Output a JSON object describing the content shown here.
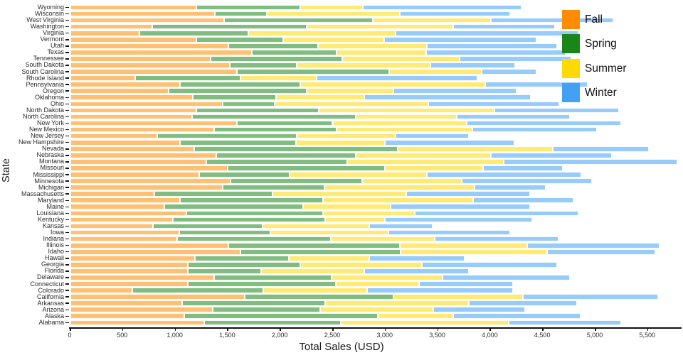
{
  "chart_data": {
    "type": "bar",
    "orientation": "horizontal",
    "stacked": true,
    "xlabel": "Total Sales (USD)",
    "ylabel": "State",
    "grid": false,
    "legend_position": "top-right",
    "x_ticks": [
      0,
      500,
      1000,
      1500,
      2000,
      2500,
      3000,
      3500,
      4000,
      4500,
      5000,
      5500
    ],
    "x_tick_labels": [
      "0",
      "500",
      "1,000",
      "1,500",
      "2,000",
      "2,500",
      "3,000",
      "3,500",
      "4,000",
      "4,500",
      "5,000",
      "5,500"
    ],
    "xlim": [
      0,
      5840
    ],
    "legend": [
      "Fall",
      "Spring",
      "Summer",
      "Winter"
    ],
    "colors": {
      "Fall": "#FF8C00",
      "Spring": "#1A8617",
      "Summer": "#FFD900",
      "Winter": "#42A1F5"
    },
    "bar_opacity": 0.55,
    "series_order": [
      "Fall",
      "Spring",
      "Summer",
      "Winter"
    ],
    "rows_top_to_bottom": [
      {
        "state": "Wyoming",
        "values": [
          1200,
          990,
          600,
          1510
        ]
      },
      {
        "state": "Wisconsin",
        "values": [
          1380,
          490,
          1270,
          1050
        ]
      },
      {
        "state": "West Virginia",
        "values": [
          1470,
          1410,
          1130,
          1160
        ]
      },
      {
        "state": "Washington",
        "values": [
          780,
          1470,
          1400,
          970
        ]
      },
      {
        "state": "Virginia",
        "values": [
          660,
          1040,
          1400,
          1740
        ]
      },
      {
        "state": "Vermont",
        "values": [
          1200,
          830,
          960,
          1450
        ]
      },
      {
        "state": "Utah",
        "values": [
          1510,
          850,
          1040,
          1240
        ]
      },
      {
        "state": "Texas",
        "values": [
          1730,
          810,
          850,
          1330
        ]
      },
      {
        "state": "Tennessee",
        "values": [
          1340,
          1250,
          1120,
          1060
        ]
      },
      {
        "state": "South Dakota",
        "values": [
          1520,
          640,
          1270,
          810
        ]
      },
      {
        "state": "South Carolina",
        "values": [
          1590,
          1450,
          880,
          520
        ]
      },
      {
        "state": "Rhode Island",
        "values": [
          620,
          1000,
          730,
          1530
        ]
      },
      {
        "state": "Pennsylvania",
        "values": [
          1050,
          1140,
          1760,
          980
        ]
      },
      {
        "state": "Oregon",
        "values": [
          940,
          1310,
          830,
          1170
        ]
      },
      {
        "state": "Oklahoma",
        "values": [
          1170,
          790,
          840,
          1590
        ]
      },
      {
        "state": "Ohio",
        "values": [
          1450,
          500,
          1460,
          1250
        ]
      },
      {
        "state": "North Dakota",
        "values": [
          1200,
          1170,
          1670,
          1190
        ]
      },
      {
        "state": "North Carolina",
        "values": [
          1160,
          1560,
          960,
          1080
        ]
      },
      {
        "state": "New York",
        "values": [
          1590,
          910,
          1280,
          1470
        ]
      },
      {
        "state": "New Mexico",
        "values": [
          1370,
          1170,
          1290,
          1190
        ]
      },
      {
        "state": "New Jersey",
        "values": [
          830,
          1330,
          940,
          700
        ]
      },
      {
        "state": "New Hampshire",
        "values": [
          1050,
          1100,
          850,
          1230
        ]
      },
      {
        "state": "Nevada",
        "values": [
          1180,
          1940,
          1480,
          910
        ]
      },
      {
        "state": "Nebraska",
        "values": [
          1390,
          1330,
          1290,
          1150
        ]
      },
      {
        "state": "Montana",
        "values": [
          1300,
          1340,
          1490,
          1650
        ]
      },
      {
        "state": "Missouri",
        "values": [
          1500,
          1500,
          930,
          760
        ]
      },
      {
        "state": "Mississippi",
        "values": [
          1230,
          860,
          1310,
          1470
        ]
      },
      {
        "state": "Minnesota",
        "values": [
          1530,
          1250,
          950,
          1240
        ]
      },
      {
        "state": "Michigan",
        "values": [
          1450,
          970,
          1430,
          680
        ]
      },
      {
        "state": "Massachusetts",
        "values": [
          800,
          1130,
          1270,
          1180
        ]
      },
      {
        "state": "Maryland",
        "values": [
          1050,
          1360,
          1430,
          950
        ]
      },
      {
        "state": "Maine",
        "values": [
          900,
          1320,
          830,
          1330
        ]
      },
      {
        "state": "Louisiana",
        "values": [
          1110,
          1300,
          870,
          1560
        ]
      },
      {
        "state": "Kentucky",
        "values": [
          980,
          1450,
          570,
          1400
        ]
      },
      {
        "state": "Kansas",
        "values": [
          790,
          1040,
          1020,
          600
        ]
      },
      {
        "state": "Iowa",
        "values": [
          1040,
          870,
          1120,
          1160
        ]
      },
      {
        "state": "Indiana",
        "values": [
          1020,
          1460,
          990,
          1180
        ]
      },
      {
        "state": "Illinois",
        "values": [
          1510,
          1630,
          1210,
          1260
        ]
      },
      {
        "state": "Idaho",
        "values": [
          1620,
          1530,
          1390,
          1030
        ]
      },
      {
        "state": "Hawaii",
        "values": [
          1190,
          890,
          770,
          910
        ]
      },
      {
        "state": "Georgia",
        "values": [
          1120,
          1070,
          1160,
          1290
        ]
      },
      {
        "state": "Florida",
        "values": [
          1120,
          700,
          980,
          1000
        ]
      },
      {
        "state": "Delaware",
        "values": [
          1370,
          1120,
          1060,
          1210
        ]
      },
      {
        "state": "Connecticut",
        "values": [
          1120,
          1410,
          790,
          900
        ]
      },
      {
        "state": "Colorado",
        "values": [
          590,
          1250,
          990,
          1390
        ]
      },
      {
        "state": "California",
        "values": [
          1660,
          1420,
          1230,
          1290
        ]
      },
      {
        "state": "Arkansas",
        "values": [
          1070,
          1360,
          1370,
          1030
        ]
      },
      {
        "state": "Arizona",
        "values": [
          1360,
          1020,
          1080,
          870
        ]
      },
      {
        "state": "Alaska",
        "values": [
          1090,
          1840,
          720,
          1210
        ]
      },
      {
        "state": "Alabama",
        "values": [
          1280,
          1300,
          1600,
          1070
        ]
      }
    ]
  }
}
